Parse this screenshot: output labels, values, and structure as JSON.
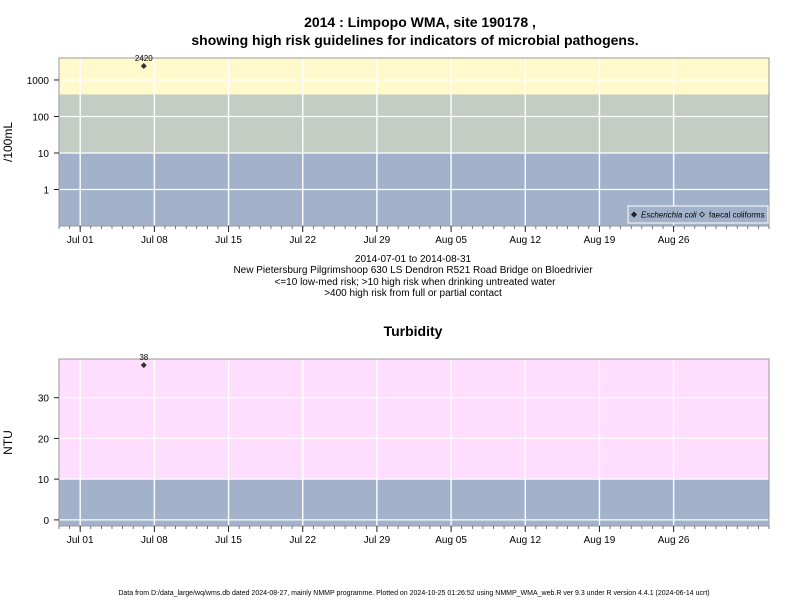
{
  "colors": {
    "background": "#ffffff",
    "band_high": "#fff9cc",
    "band_mid": "#c3cdc3",
    "band_low": "#a1b2ca",
    "band_turbidity_high": "#ffddff",
    "gridline": "#ffffff",
    "marker": "#333333"
  },
  "top": {
    "title_line1": "2014 : Limpopo WMA, site 190178 ,",
    "title_line2": "showing high risk guidelines for indicators of microbial pathogens."
  },
  "middle": {
    "date_range": "2014-07-01 to 2014-08-31",
    "site_name": "New Pietersburg Pilgrimshoop 630 LS Dendron R521 Road Bridge on Bloedrivier",
    "guideline_1": "<=10 low-med risk; >10 high risk when drinking untreated water",
    "guideline_2": ">400 high risk from full or partial contact"
  },
  "footer": {
    "text": "Data from D:/data_large/wq/wms.db dated 2024-08-27, mainly NMMP programme. Plotted on 2024-10-25 01:26:52 using NMMP_WMA_web.R ver 9.3 under R version 4.4.1 (2024-06-14 ucrt)"
  },
  "chart_data": [
    {
      "type": "scatter",
      "title": "",
      "ylabel": "/100mL",
      "y_scale": "log",
      "ylim": [
        0.1,
        4000
      ],
      "xlim": [
        "2014-06-29",
        "2014-09-04"
      ],
      "x_tick_labels": [
        "Jul 01",
        "Jul 08",
        "Jul 15",
        "Jul 22",
        "Jul 29",
        "Aug 05",
        "Aug 12",
        "Aug 19",
        "Aug 26"
      ],
      "y_ticks": [
        1,
        10,
        100,
        1000
      ],
      "y_tick_labels": [
        "1",
        "10",
        "100",
        "1000"
      ],
      "grid": true,
      "bands": [
        {
          "from": 0.1,
          "to": 10,
          "color": "#a1b2ca"
        },
        {
          "from": 10,
          "to": 400,
          "color": "#c3cdc3"
        },
        {
          "from": 400,
          "to": 4000,
          "color": "#fff9cc"
        }
      ],
      "legend": {
        "position": "bottom-right",
        "entries": [
          {
            "label": "Escherichia coli",
            "marker": "filled-diamond",
            "italic": true
          },
          {
            "label": "faecal coliforms",
            "marker": "open-diamond",
            "italic": false
          }
        ]
      },
      "series": [
        {
          "name": "Escherichia coli",
          "points": [
            {
              "x": "2014-07-07",
              "y": 2420,
              "label": "2420"
            }
          ]
        }
      ]
    },
    {
      "type": "scatter",
      "title": "Turbidity",
      "ylabel": "NTU",
      "y_scale": "linear",
      "ylim": [
        -1.5,
        39.5
      ],
      "xlim": [
        "2014-06-29",
        "2014-09-04"
      ],
      "x_tick_labels": [
        "Jul 01",
        "Jul 08",
        "Jul 15",
        "Jul 22",
        "Jul 29",
        "Aug 05",
        "Aug 12",
        "Aug 19",
        "Aug 26"
      ],
      "y_ticks": [
        0,
        10,
        20,
        30
      ],
      "y_tick_labels": [
        "0",
        "10",
        "20",
        "30"
      ],
      "grid": true,
      "bands": [
        {
          "from": -1.5,
          "to": 10,
          "color": "#a1b2ca"
        },
        {
          "from": 10,
          "to": 39.5,
          "color": "#ffddff"
        }
      ],
      "series": [
        {
          "points": [
            {
              "x": "2014-07-07",
              "y": 38,
              "label": "38"
            }
          ]
        }
      ]
    }
  ]
}
